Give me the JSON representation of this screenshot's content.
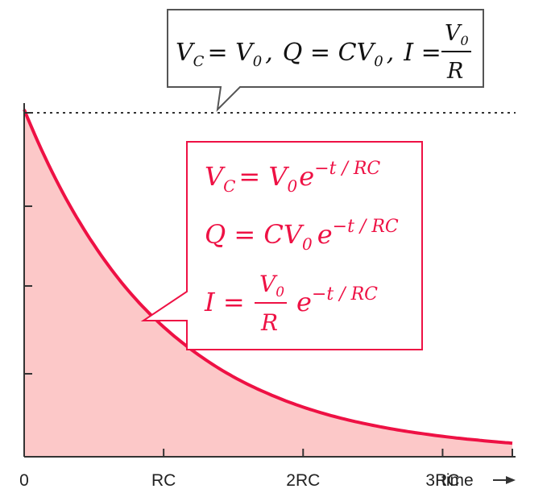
{
  "chart_data": {
    "type": "area",
    "x_ticks": [
      "0",
      "RC",
      "2RC",
      "3RC"
    ],
    "x_axis_label": "time",
    "x": [
      0,
      0.25,
      0.5,
      0.75,
      1,
      1.25,
      1.5,
      1.75,
      2,
      2.25,
      2.5,
      2.75,
      3,
      3.25,
      3.5
    ],
    "series": [
      {
        "values": [
          1,
          0.779,
          0.607,
          0.472,
          0.368,
          0.287,
          0.223,
          0.174,
          0.135,
          0.105,
          0.082,
          0.064,
          0.05,
          0.039,
          0.03
        ]
      }
    ],
    "xlim": [
      0,
      3.5
    ],
    "ylim": [
      0,
      1
    ],
    "grid": false,
    "colors": {
      "curve": "#ee1144",
      "fill": "#fcc8c8",
      "annotation": "#ee1144",
      "axis": "#333333"
    }
  },
  "annotations": {
    "top": {
      "vc": "V",
      "vc_sub": "C",
      "eq1": "= V",
      "eq1_sub": "0",
      "sep1": ",",
      "q": "Q = CV",
      "q_sub": "0",
      "sep2": ",",
      "i": "I =",
      "frac_num": "V",
      "frac_num_sub": "0",
      "frac_den": "R"
    },
    "red": {
      "line1": "V",
      "line1_sub": "C",
      "line1_mid": "= V",
      "line1_sub2": "0",
      "line1_e": "e",
      "exp": "−t / RC",
      "line2": "Q = CV",
      "line2_sub": "0",
      "line2_e": "e",
      "line3": "I =",
      "frac_num": "V",
      "frac_num_sub": "0",
      "frac_den": "R",
      "line3_e": "e"
    }
  }
}
